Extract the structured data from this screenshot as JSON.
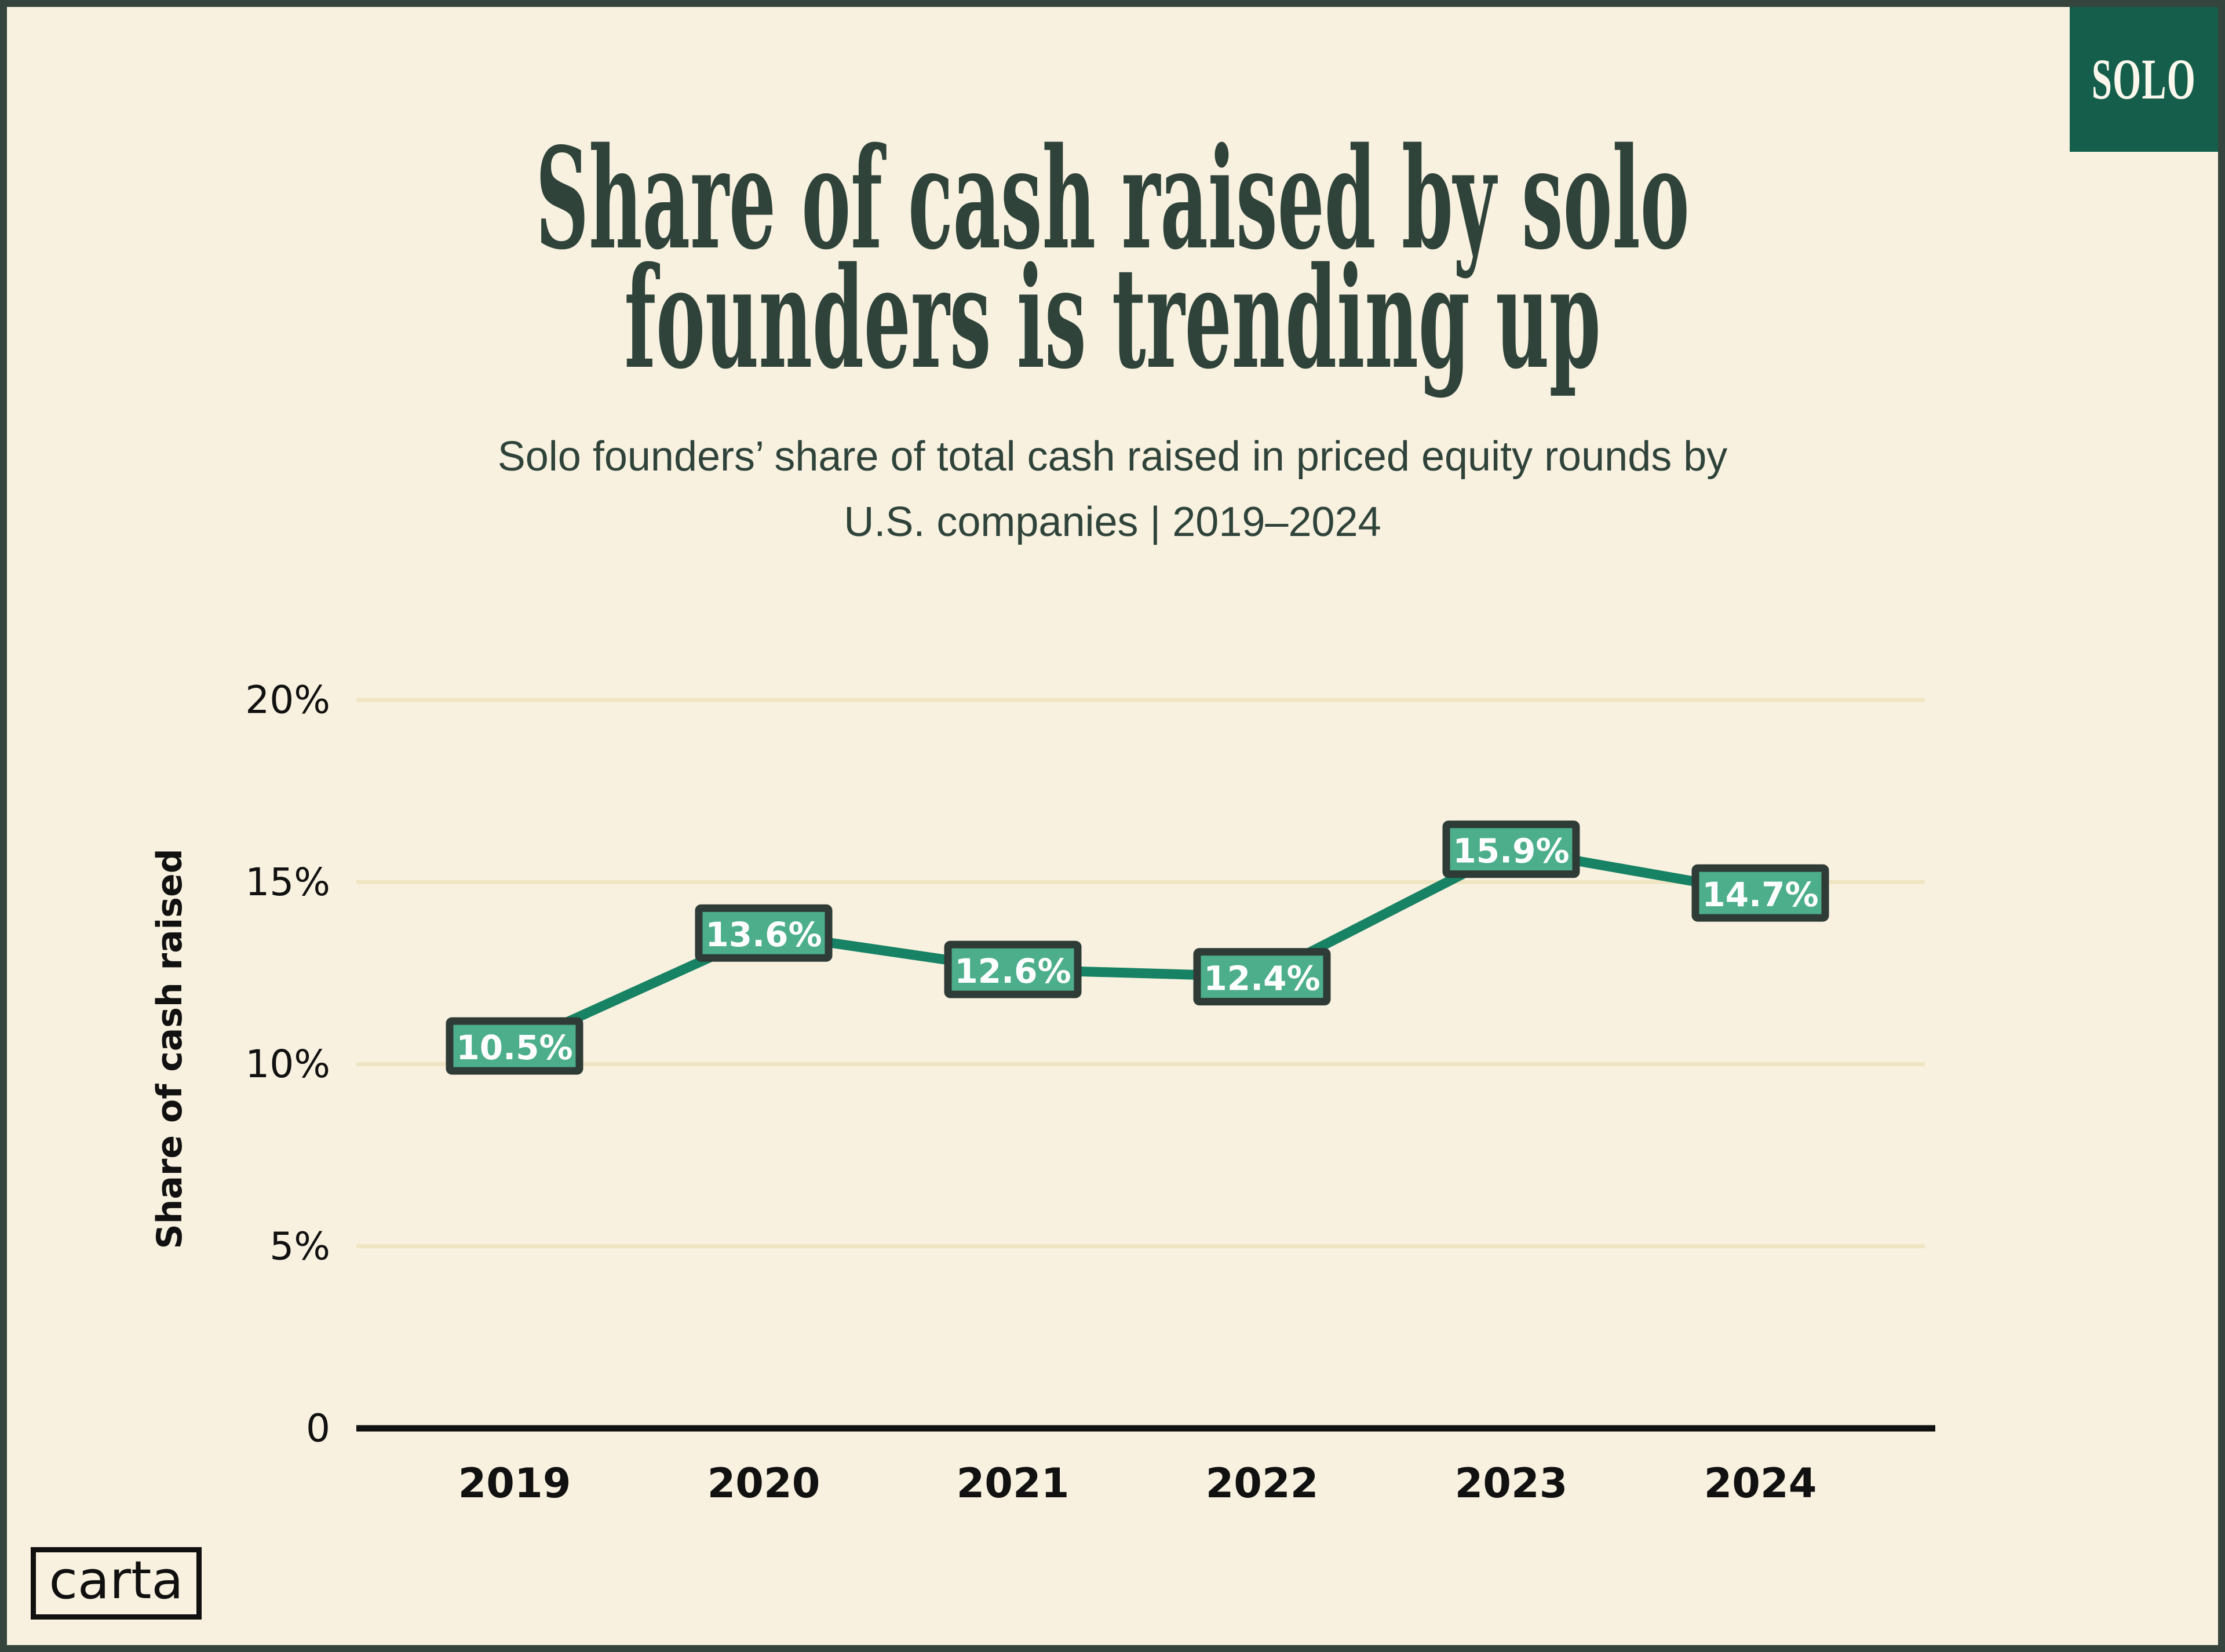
{
  "page": {
    "background": "#F8F1DF",
    "frame_color": "#36443E"
  },
  "badge": {
    "label": "SOLO",
    "bg": "#155E4C",
    "text_color": "#FBF7EC"
  },
  "title": {
    "line1": "Share of cash raised by solo",
    "line2": "founders is trending up",
    "color": "#2F433B"
  },
  "subtitle": {
    "line1": "Solo founders’ share of total cash raised in priced equity rounds by",
    "line2": "U.S. companies | 2019–2024",
    "color": "#2F433B"
  },
  "logo": {
    "label": "carta",
    "color": "#101010"
  },
  "chart_data": {
    "type": "line",
    "title": "Share of cash raised by solo founders is trending up",
    "subtitle": "Solo founders’ share of total cash raised in priced equity rounds by U.S. companies | 2019–2024",
    "categories": [
      "2019",
      "2020",
      "2021",
      "2022",
      "2023",
      "2024"
    ],
    "values": [
      10.5,
      13.6,
      12.6,
      12.4,
      15.9,
      14.7
    ],
    "point_labels": [
      "10.5%",
      "13.6%",
      "12.6%",
      "12.4%",
      "15.9%",
      "14.7%"
    ],
    "xlabel": "",
    "ylabel": "Share of cash raised",
    "ylim": [
      0,
      20
    ],
    "yticks": [
      {
        "value": 0,
        "label": "0"
      },
      {
        "value": 5,
        "label": "5%"
      },
      {
        "value": 10,
        "label": "10%"
      },
      {
        "value": 15,
        "label": "15%"
      },
      {
        "value": 20,
        "label": "20%"
      }
    ],
    "grid": true,
    "legend": false,
    "colors": {
      "line": "#178264",
      "marker_fill": "#4CAE8B",
      "marker_border": "#2E3B36",
      "marker_text": "#FFFFFF",
      "gridline": "#F0E5C2",
      "axis": "#111111",
      "tick_text": "#111111",
      "axis_title_text": "#111111"
    }
  }
}
